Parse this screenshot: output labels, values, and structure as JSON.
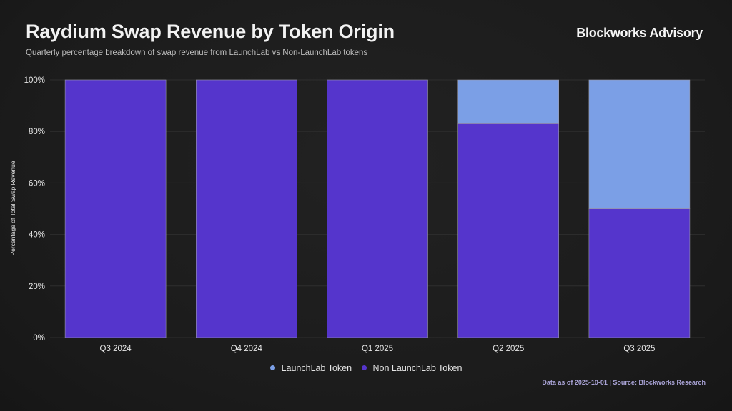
{
  "header": {
    "title": "Raydium Swap Revenue by Token Origin",
    "subtitle": "Quarterly percentage breakdown of swap revenue from LaunchLab vs Non-LaunchLab tokens",
    "brand": "Blockworks Advisory"
  },
  "footer": {
    "note": "Data as of 2025-10-01 | Source: Blockworks Research"
  },
  "colors": {
    "launchlab": "#7b9fe6",
    "non_launchlab": "#5535cc",
    "grid": "#2e2e2e",
    "background": "#1c1c1c"
  },
  "chart_data": {
    "type": "bar",
    "stacked": true,
    "title": "Raydium Swap Revenue by Token Origin",
    "subtitle": "Quarterly percentage breakdown of swap revenue from LaunchLab vs Non-LaunchLab tokens",
    "xlabel": "",
    "ylabel": "Percentage of Total Swap Revenue",
    "categories": [
      "Q3 2024",
      "Q4 2024",
      "Q1 2025",
      "Q2 2025",
      "Q3 2025"
    ],
    "series": [
      {
        "name": "Non LaunchLab Token",
        "color": "#5535cc",
        "values": [
          100,
          100,
          100,
          83,
          50
        ]
      },
      {
        "name": "LaunchLab Token",
        "color": "#7b9fe6",
        "values": [
          0,
          0,
          0,
          17,
          50
        ]
      }
    ],
    "ylim": [
      0,
      100
    ],
    "yticks": [
      0,
      20,
      40,
      60,
      80,
      100
    ],
    "ytick_labels": [
      "0%",
      "20%",
      "40%",
      "60%",
      "80%",
      "100%"
    ],
    "grid": true,
    "legend": {
      "position": "bottom-center",
      "entries": [
        "LaunchLab Token",
        "Non LaunchLab Token"
      ]
    }
  }
}
